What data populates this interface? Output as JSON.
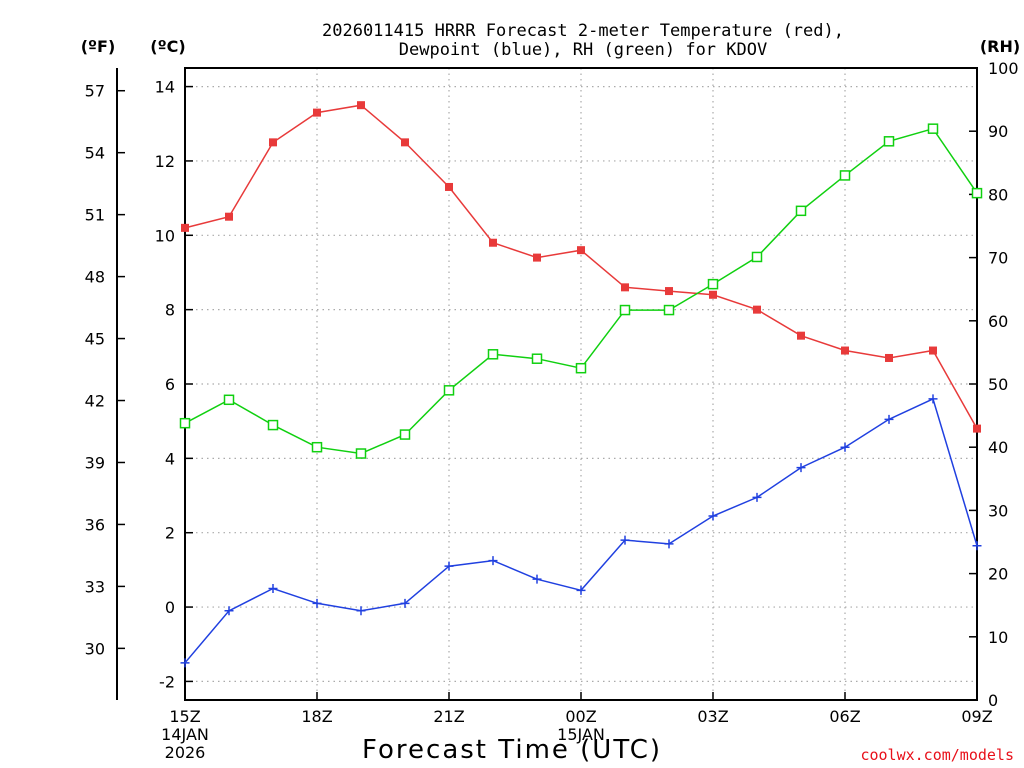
{
  "chart_data": {
    "type": "line",
    "title": "2026011415 HRRR Forecast 2-meter Temperature (red),",
    "subtitle": "Dewpoint (blue), RH (green) for KDOV",
    "xlabel": "Forecast Time (UTC)",
    "ylabel_left_f": "(ºF)",
    "ylabel_left_c": "(ºC)",
    "ylabel_right": "(RH)",
    "credit": "coolwx.com/models",
    "x_hours": [
      15,
      16,
      17,
      18,
      19,
      20,
      21,
      22,
      23,
      24,
      25,
      26,
      27,
      28,
      29,
      30,
      31,
      32,
      33
    ],
    "xlim": [
      15,
      33
    ],
    "ylim_c": [
      -2.5,
      14.5
    ],
    "ylim_rh": [
      0,
      100
    ],
    "ylim_f": [
      27.5,
      58.1
    ],
    "x_ticks": [
      {
        "hour": 15,
        "label": "15Z",
        "sub1": "14JAN",
        "sub2": "2026"
      },
      {
        "hour": 18,
        "label": "18Z",
        "sub1": "",
        "sub2": ""
      },
      {
        "hour": 21,
        "label": "21Z",
        "sub1": "",
        "sub2": ""
      },
      {
        "hour": 24,
        "label": "00Z",
        "sub1": "15JAN",
        "sub2": ""
      },
      {
        "hour": 27,
        "label": "03Z",
        "sub1": "",
        "sub2": ""
      },
      {
        "hour": 30,
        "label": "06Z",
        "sub1": "",
        "sub2": ""
      },
      {
        "hour": 33,
        "label": "09Z",
        "sub1": "",
        "sub2": ""
      }
    ],
    "yticks_c": [
      "-2",
      "0",
      "2",
      "4",
      "6",
      "8",
      "10",
      "12",
      "14"
    ],
    "yticks_f": [
      "30",
      "33",
      "36",
      "39",
      "42",
      "45",
      "48",
      "51",
      "54",
      "57"
    ],
    "yticks_rh": [
      "0",
      "10",
      "20",
      "30",
      "40",
      "50",
      "60",
      "70",
      "80",
      "90",
      "100"
    ],
    "series": [
      {
        "name": "Temperature (°C)",
        "axis": "c",
        "color": "#e83a3a",
        "marker": "filled-square",
        "values": [
          10.2,
          10.5,
          12.5,
          13.3,
          13.5,
          12.5,
          11.3,
          9.8,
          9.4,
          9.6,
          8.6,
          8.5,
          8.4,
          8.0,
          7.3,
          6.9,
          6.7,
          6.9,
          4.8
        ]
      },
      {
        "name": "Dewpoint (°C)",
        "axis": "c",
        "color": "#2040e0",
        "marker": "plus",
        "values": [
          -1.5,
          -0.1,
          0.5,
          0.1,
          -0.1,
          0.1,
          1.1,
          1.25,
          0.75,
          0.45,
          1.8,
          1.7,
          2.45,
          2.95,
          3.75,
          4.3,
          5.05,
          5.6,
          1.65
        ]
      },
      {
        "name": "RH (%)",
        "axis": "rh",
        "color": "#10d010",
        "marker": "open-square",
        "values": [
          43.8,
          47.5,
          43.5,
          40.0,
          39.0,
          42.0,
          49.0,
          54.7,
          54.0,
          52.5,
          61.7,
          61.7,
          65.8,
          70.1,
          77.4,
          83.0,
          88.4,
          90.4,
          80.2
        ]
      }
    ]
  }
}
